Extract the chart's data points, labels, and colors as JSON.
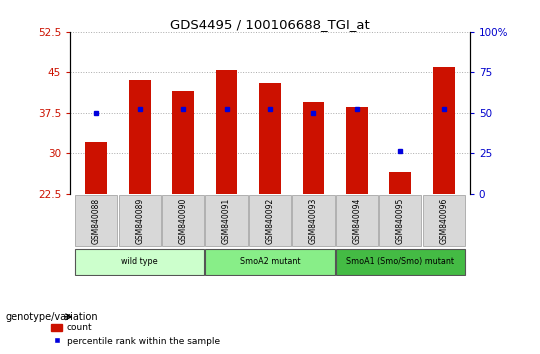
{
  "title": "GDS4495 / 100106688_TGI_at",
  "samples": [
    "GSM840088",
    "GSM840089",
    "GSM840090",
    "GSM840091",
    "GSM840092",
    "GSM840093",
    "GSM840094",
    "GSM840095",
    "GSM840096"
  ],
  "count_values": [
    32.0,
    43.5,
    41.5,
    45.5,
    43.0,
    39.5,
    38.5,
    26.5,
    46.0
  ],
  "percentile_values": [
    50.0,
    52.0,
    52.0,
    52.0,
    52.0,
    50.0,
    52.0,
    26.0,
    52.0
  ],
  "groups": [
    {
      "label": "wild type",
      "indices": [
        0,
        1,
        2
      ],
      "color": "#ccffcc"
    },
    {
      "label": "SmoA2 mutant",
      "indices": [
        3,
        4,
        5
      ],
      "color": "#88ee88"
    },
    {
      "label": "SmoA1 (Smo/Smo) mutant",
      "indices": [
        6,
        7,
        8
      ],
      "color": "#44bb44"
    }
  ],
  "ylim_left": [
    22.5,
    52.5
  ],
  "ylim_right": [
    0,
    100
  ],
  "yticks_left": [
    22.5,
    30,
    37.5,
    45,
    52.5
  ],
  "yticks_right": [
    0,
    25,
    50,
    75,
    100
  ],
  "bar_color": "#cc1100",
  "dot_color": "#0000dd",
  "bar_width": 0.5,
  "bg_color": "#ffffff",
  "label_color_left": "#cc1100",
  "label_color_right": "#0000cc",
  "legend_count_label": "count",
  "legend_pct_label": "percentile rank within the sample",
  "genotype_label": "genotype/variation"
}
